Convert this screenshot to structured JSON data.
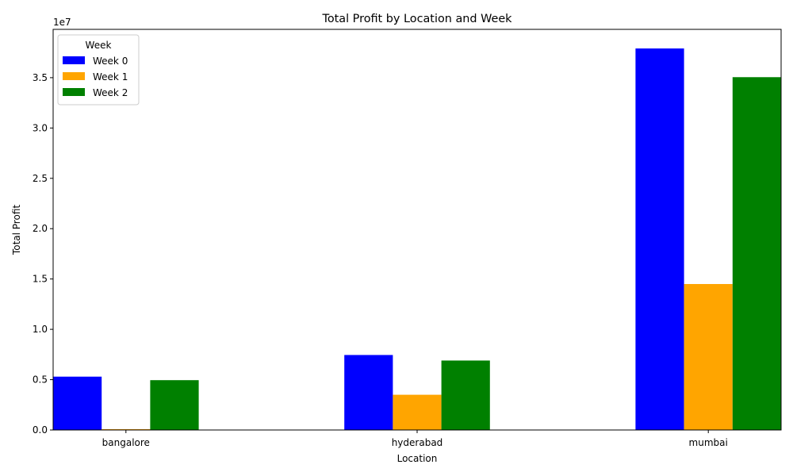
{
  "chart_data": {
    "type": "bar",
    "title": "Total Profit by Location and Week",
    "xlabel": "Location",
    "ylabel": "Total Profit",
    "y_offset_text": "1e7",
    "categories": [
      "bangalore",
      "hyderabad",
      "mumbai"
    ],
    "series": [
      {
        "name": "Week 0",
        "color": "#0000ff",
        "values": [
          5300000,
          7450000,
          37900000
        ]
      },
      {
        "name": "Week 1",
        "color": "#ffa500",
        "values": [
          80000,
          3500000,
          14500000
        ]
      },
      {
        "name": "Week 2",
        "color": "#008000",
        "values": [
          4950000,
          6900000,
          35050000
        ]
      }
    ],
    "ylim": [
      0,
      39800000
    ],
    "y_ticks": [
      0,
      5000000,
      10000000,
      15000000,
      20000000,
      25000000,
      30000000,
      35000000
    ],
    "y_tick_labels": [
      "0.0",
      "0.5",
      "1.0",
      "1.5",
      "2.0",
      "2.5",
      "3.0",
      "3.5"
    ],
    "legend": {
      "title": "Week",
      "placement": "top-left"
    },
    "grid": false
  }
}
